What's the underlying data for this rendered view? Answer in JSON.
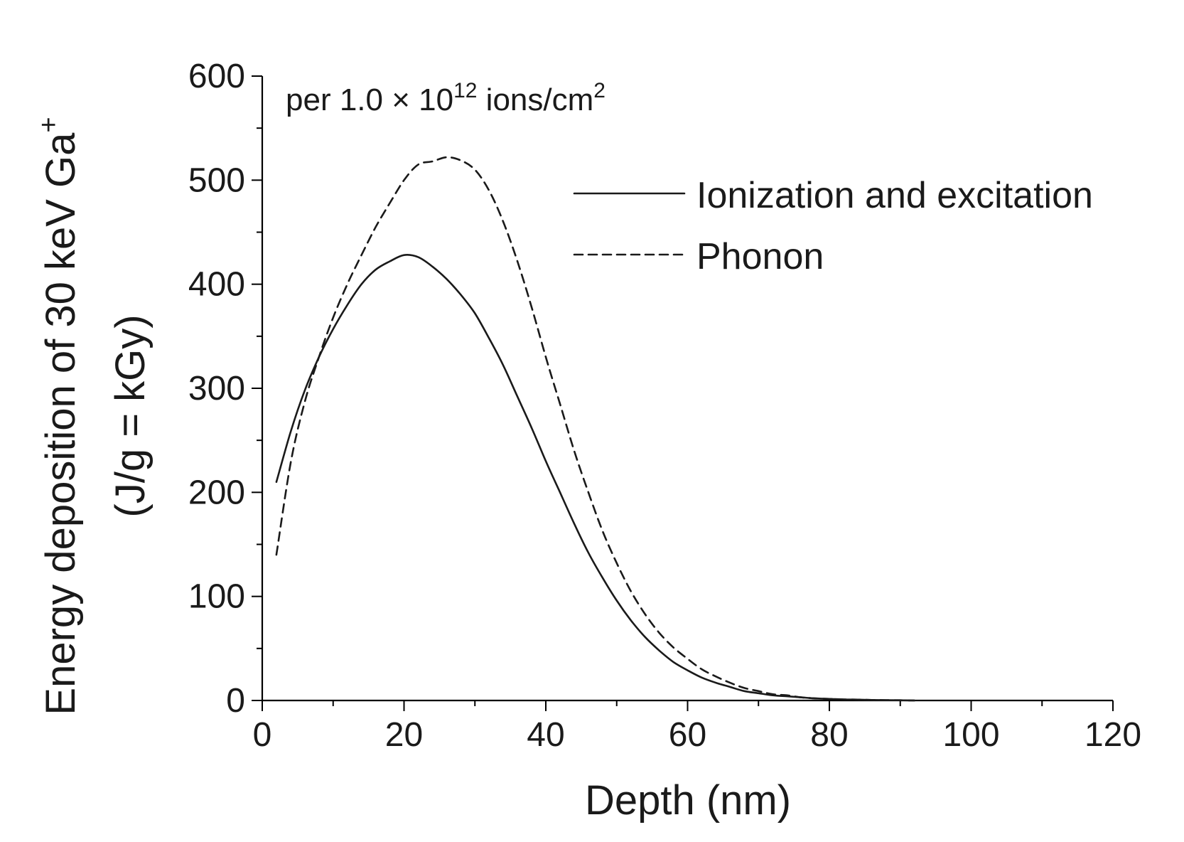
{
  "chart_data": {
    "type": "line",
    "title": "",
    "annotation": {
      "prefix": "per 1.0 × 10",
      "exponent": "12",
      "unit": " ions/cm",
      "unit_exponent": "2"
    },
    "xlabel": "Depth (nm)",
    "ylabel": {
      "line1_prefix": "Energy deposition of 30 keV Ga",
      "line1_superscript": "+",
      "line2": "(J/g = kGy)"
    },
    "xlim": [
      0,
      120
    ],
    "ylim": [
      0,
      600
    ],
    "xticks": [
      0,
      20,
      40,
      60,
      80,
      100,
      120
    ],
    "yticks": [
      0,
      100,
      200,
      300,
      400,
      500,
      600
    ],
    "x_minor_step": 10,
    "y_minor_step": 50,
    "legend_position": "upper-right",
    "series": [
      {
        "name": "Ionization and excitation",
        "style": "solid",
        "color": "#1a1a1a",
        "x": [
          2,
          4,
          6,
          8,
          10,
          12,
          14,
          16,
          18,
          20,
          22,
          24,
          26,
          28,
          30,
          32,
          34,
          36,
          38,
          40,
          42,
          44,
          46,
          48,
          50,
          52,
          54,
          56,
          58,
          60,
          62,
          64,
          66,
          68,
          70,
          72,
          74,
          76,
          78,
          80,
          82,
          84,
          86,
          88,
          90,
          92
        ],
        "y": [
          210,
          258,
          298,
          330,
          357,
          380,
          400,
          414,
          422,
          428,
          426,
          417,
          405,
          390,
          372,
          348,
          322,
          292,
          262,
          230,
          200,
          170,
          142,
          118,
          96,
          77,
          61,
          48,
          37,
          29,
          22,
          17,
          13,
          9,
          7,
          5,
          4,
          3,
          2,
          1.5,
          1,
          0.8,
          0.5,
          0.3,
          0.2,
          0
        ]
      },
      {
        "name": "Phonon",
        "style": "dashed",
        "color": "#1a1a1a",
        "x": [
          2,
          4,
          6,
          8,
          10,
          12,
          14,
          16,
          18,
          20,
          22,
          24,
          26,
          28,
          30,
          32,
          34,
          36,
          38,
          40,
          42,
          44,
          46,
          48,
          50,
          52,
          54,
          56,
          58,
          60,
          62,
          64,
          66,
          68,
          70,
          72,
          74,
          76,
          78,
          80,
          82,
          84,
          86,
          88,
          90,
          92
        ],
        "y": [
          140,
          228,
          287,
          330,
          368,
          400,
          428,
          455,
          478,
          500,
          515,
          518,
          522,
          519,
          510,
          490,
          460,
          422,
          378,
          330,
          285,
          240,
          200,
          163,
          132,
          105,
          83,
          65,
          51,
          40,
          30,
          23,
          17,
          12,
          9,
          6,
          5,
          3,
          2,
          1.5,
          1,
          0.8,
          0.5,
          0.3,
          0.2,
          0
        ]
      }
    ]
  }
}
